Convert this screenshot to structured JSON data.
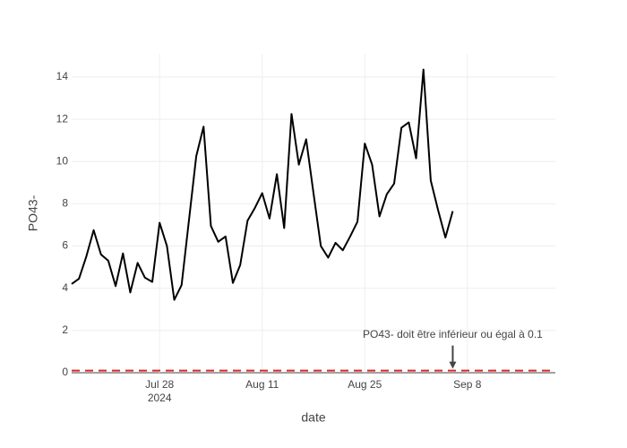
{
  "chart_data": {
    "type": "line",
    "x_label": "date",
    "y_label": "PO43-",
    "x": [
      "2024-07-16",
      "2024-07-17",
      "2024-07-18",
      "2024-07-19",
      "2024-07-20",
      "2024-07-21",
      "2024-07-22",
      "2024-07-23",
      "2024-07-24",
      "2024-07-25",
      "2024-07-26",
      "2024-07-27",
      "2024-07-28",
      "2024-07-29",
      "2024-07-30",
      "2024-07-31",
      "2024-08-01",
      "2024-08-02",
      "2024-08-03",
      "2024-08-04",
      "2024-08-05",
      "2024-08-06",
      "2024-08-07",
      "2024-08-08",
      "2024-08-09",
      "2024-08-10",
      "2024-08-11",
      "2024-08-12",
      "2024-08-13",
      "2024-08-14",
      "2024-08-15",
      "2024-08-16",
      "2024-08-17",
      "2024-08-18",
      "2024-08-19",
      "2024-08-20",
      "2024-08-21",
      "2024-08-22",
      "2024-08-23",
      "2024-08-24",
      "2024-08-25",
      "2024-08-26",
      "2024-08-27",
      "2024-08-28",
      "2024-08-29",
      "2024-08-30",
      "2024-08-31",
      "2024-09-01",
      "2024-09-02",
      "2024-09-03",
      "2024-09-04",
      "2024-09-05",
      "2024-09-06"
    ],
    "values": [
      4.2,
      4.45,
      5.5,
      6.75,
      5.6,
      5.3,
      4.1,
      5.65,
      3.8,
      5.2,
      4.5,
      4.3,
      7.1,
      6.0,
      3.45,
      4.15,
      7.2,
      10.25,
      11.65,
      6.95,
      6.2,
      6.45,
      4.25,
      5.1,
      7.2,
      7.8,
      8.5,
      7.3,
      9.4,
      6.85,
      12.25,
      9.85,
      11.05,
      8.5,
      6.0,
      5.45,
      6.15,
      5.8,
      6.45,
      7.15,
      10.85,
      9.85,
      7.4,
      8.45,
      8.95,
      11.6,
      11.85,
      10.15,
      14.35,
      9.1,
      7.7,
      6.4,
      7.65
    ],
    "color": "#000000",
    "xlim": [
      "2024-07-16",
      "2024-09-20"
    ],
    "xticks": [
      {
        "value": "2024-07-28",
        "label": "Jul 28\n2024"
      },
      {
        "value": "2024-08-11",
        "label": "Aug 11"
      },
      {
        "value": "2024-08-25",
        "label": "Aug 25"
      },
      {
        "value": "2024-09-08",
        "label": "Sep 8"
      }
    ],
    "ylim": [
      0,
      15.1
    ],
    "yticks": [
      0,
      2,
      4,
      6,
      8,
      10,
      12,
      14
    ],
    "grid": true,
    "threshold": {
      "value": 0.1,
      "color": "#d62728"
    },
    "annotation": {
      "text": "PO43- doit être inférieur ou égal à 0.1",
      "x": "2024-09-06",
      "y": 0.1
    }
  }
}
